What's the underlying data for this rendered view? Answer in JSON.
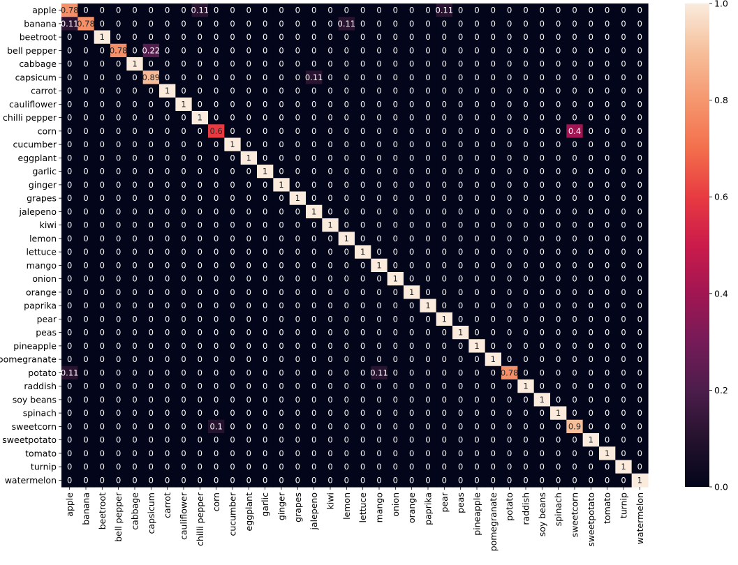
{
  "chart_data": {
    "type": "heatmap",
    "title": "",
    "xlabel": "",
    "ylabel": "",
    "categories": [
      "apple",
      "banana",
      "beetroot",
      "bell pepper",
      "cabbage",
      "capsicum",
      "carrot",
      "cauliflower",
      "chilli pepper",
      "corn",
      "cucumber",
      "eggplant",
      "garlic",
      "ginger",
      "grapes",
      "jalepeno",
      "kiwi",
      "lemon",
      "lettuce",
      "mango",
      "onion",
      "orange",
      "paprika",
      "pear",
      "peas",
      "pineapple",
      "pomegranate",
      "potato",
      "raddish",
      "soy beans",
      "spinach",
      "sweetcorn",
      "sweetpotato",
      "tomato",
      "turnip",
      "watermelon"
    ],
    "diagonal": [
      0.78,
      0.78,
      1,
      0.78,
      1,
      0.89,
      1,
      1,
      1,
      0.6,
      1,
      1,
      1,
      1,
      1,
      1,
      1,
      1,
      1,
      1,
      1,
      1,
      1,
      1,
      1,
      1,
      1,
      0.78,
      1,
      1,
      1,
      0.9,
      1,
      1,
      1,
      1
    ],
    "off_diagonal": [
      {
        "row": 0,
        "col": 8,
        "value": 0.11
      },
      {
        "row": 0,
        "col": 23,
        "value": 0.11
      },
      {
        "row": 1,
        "col": 0,
        "value": 0.11
      },
      {
        "row": 1,
        "col": 17,
        "value": 0.11
      },
      {
        "row": 3,
        "col": 5,
        "value": 0.22
      },
      {
        "row": 5,
        "col": 15,
        "value": 0.11
      },
      {
        "row": 9,
        "col": 31,
        "value": 0.4
      },
      {
        "row": 27,
        "col": 0,
        "value": 0.11
      },
      {
        "row": 27,
        "col": 19,
        "value": 0.11
      },
      {
        "row": 31,
        "col": 9,
        "value": 0.1
      }
    ],
    "colorbar": {
      "min": 0.0,
      "max": 1.0,
      "ticks": [
        "0.0",
        "0.2",
        "0.4",
        "0.6",
        "0.8",
        "1.0"
      ],
      "colormap": "rocket"
    },
    "grid": false,
    "legend": "colorbar-right"
  }
}
